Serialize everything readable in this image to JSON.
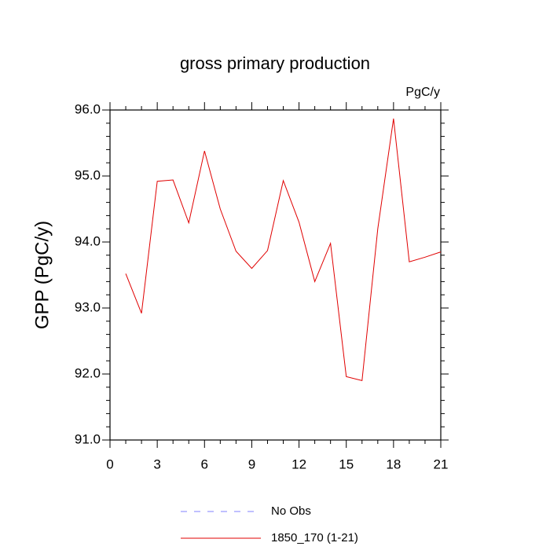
{
  "chart_data": {
    "type": "line",
    "title": "gross primary production",
    "units": "PgC/y",
    "y_label": "GPP  (PgC/y)",
    "x": [
      1,
      2,
      3,
      4,
      5,
      6,
      7,
      8,
      9,
      10,
      11,
      12,
      13,
      14,
      15,
      16,
      17,
      18,
      19,
      20,
      21
    ],
    "series": [
      {
        "name": "No Obs",
        "color": "#8080ff",
        "dashed": true,
        "values": [
          null,
          null,
          null,
          null,
          null,
          null,
          null,
          null,
          null,
          null,
          null,
          null,
          null,
          null,
          null,
          null,
          null,
          null,
          null,
          null,
          null
        ]
      },
      {
        "name": "1850_170 (1-21)",
        "color": "#e00000",
        "dashed": false,
        "values": [
          93.52,
          92.92,
          94.92,
          94.94,
          94.29,
          95.38,
          94.5,
          93.86,
          93.6,
          93.87,
          94.93,
          94.3,
          93.4,
          93.98,
          91.96,
          91.9,
          94.2,
          95.87,
          93.7,
          93.77,
          93.85
        ]
      }
    ],
    "xlim": [
      0,
      21
    ],
    "xticks": [
      0,
      3,
      6,
      9,
      12,
      15,
      18,
      21
    ],
    "ylim": [
      91,
      96
    ],
    "yticks": [
      {
        "value": 91,
        "label": "91.0"
      },
      {
        "value": 92,
        "label": "92.0"
      },
      {
        "value": 93,
        "label": "93.0"
      },
      {
        "value": 94,
        "label": "94.0"
      },
      {
        "value": 95,
        "label": "95.0"
      },
      {
        "value": 96,
        "label": "96.0"
      }
    ]
  }
}
